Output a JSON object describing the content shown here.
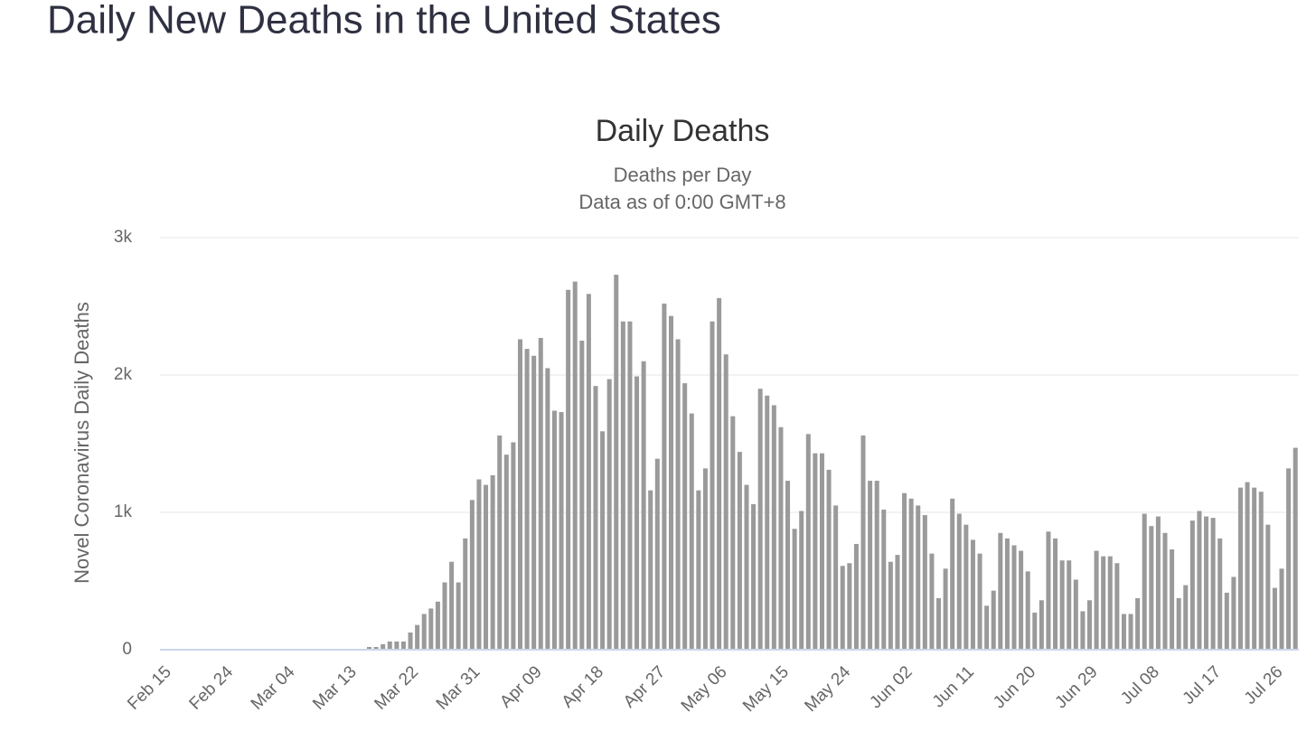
{
  "header": {
    "title": "Daily New Deaths in the United States"
  },
  "chart_data": {
    "type": "bar",
    "title": "Daily Deaths",
    "subtitle": [
      "Deaths per Day",
      "Data as of 0:00 GMT+8"
    ],
    "y_label": "Novel Coronavirus Daily Deaths",
    "color": "#9a9a9a",
    "grid": true,
    "ylim": [
      0,
      3000
    ],
    "yticks": [
      0,
      {
        "value": 1000,
        "label": "1k"
      },
      {
        "value": 2000,
        "label": "2k"
      },
      {
        "value": 3000,
        "label": "3k"
      }
    ],
    "categories": [
      "Feb 15",
      null,
      null,
      null,
      null,
      null,
      null,
      null,
      null,
      "Feb 24",
      null,
      null,
      null,
      null,
      null,
      null,
      null,
      null,
      "Mar 04",
      null,
      null,
      null,
      null,
      null,
      null,
      null,
      null,
      "Mar 13",
      null,
      null,
      null,
      null,
      null,
      null,
      null,
      null,
      "Mar 22",
      null,
      null,
      null,
      null,
      null,
      null,
      null,
      null,
      "Mar 31",
      null,
      null,
      null,
      null,
      null,
      null,
      null,
      null,
      "Apr 09",
      null,
      null,
      null,
      null,
      null,
      null,
      null,
      null,
      "Apr 18",
      null,
      null,
      null,
      null,
      null,
      null,
      null,
      null,
      "Apr 27",
      null,
      null,
      null,
      null,
      null,
      null,
      null,
      null,
      "May 06",
      null,
      null,
      null,
      null,
      null,
      null,
      null,
      null,
      "May 15",
      null,
      null,
      null,
      null,
      null,
      null,
      null,
      null,
      "May 24",
      null,
      null,
      null,
      null,
      null,
      null,
      null,
      null,
      "Jun 02",
      null,
      null,
      null,
      null,
      null,
      null,
      null,
      null,
      "Jun 11",
      null,
      null,
      null,
      null,
      null,
      null,
      null,
      null,
      "Jun 20",
      null,
      null,
      null,
      null,
      null,
      null,
      null,
      null,
      "Jun 29",
      null,
      null,
      null,
      null,
      null,
      null,
      null,
      null,
      "Jul 08",
      null,
      null,
      null,
      null,
      null,
      null,
      null,
      null,
      "Jul 17",
      null,
      null,
      null,
      null,
      null,
      null,
      null,
      null,
      "Jul 26",
      null,
      null,
      null
    ],
    "values": [
      0,
      0,
      0,
      0,
      0,
      0,
      0,
      0,
      0,
      0,
      0,
      0,
      0,
      0,
      0,
      0,
      0,
      0,
      0,
      0,
      0,
      0,
      0,
      0,
      0,
      0,
      0,
      0,
      0,
      0,
      20,
      20,
      40,
      60,
      60,
      60,
      125,
      180,
      260,
      300,
      350,
      490,
      640,
      490,
      810,
      1090,
      1240,
      1200,
      1270,
      1560,
      1420,
      1510,
      2260,
      2190,
      2140,
      2270,
      2050,
      1740,
      1730,
      2620,
      2680,
      2250,
      2590,
      1920,
      1590,
      1970,
      2730,
      2390,
      2390,
      1990,
      2100,
      1160,
      1390,
      2520,
      2430,
      2260,
      1940,
      1720,
      1160,
      1320,
      2390,
      2560,
      2150,
      1700,
      1440,
      1200,
      1060,
      1900,
      1850,
      1780,
      1620,
      1230,
      880,
      1010,
      1570,
      1430,
      1430,
      1310,
      1050,
      610,
      630,
      770,
      1560,
      1230,
      1230,
      1020,
      640,
      690,
      1140,
      1100,
      1050,
      980,
      700,
      375,
      590,
      1100,
      990,
      910,
      800,
      700,
      320,
      430,
      850,
      810,
      760,
      720,
      570,
      270,
      360,
      860,
      810,
      650,
      650,
      510,
      280,
      360,
      720,
      680,
      680,
      630,
      260,
      260,
      375,
      990,
      900,
      970,
      850,
      730,
      375,
      470,
      940,
      1010,
      970,
      960,
      810,
      415,
      530,
      1180,
      1220,
      1180,
      1150,
      910,
      450,
      590,
      1320,
      1470
    ]
  }
}
